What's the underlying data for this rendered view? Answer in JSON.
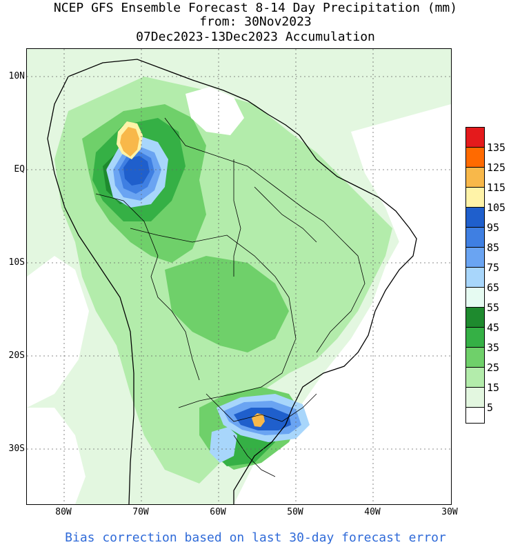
{
  "title": {
    "line1": "NCEP GFS Ensemble Forecast 8-14 Day Precipitation (mm)",
    "line2": "from: 30Nov2023",
    "line3": "07Dec2023-13Dec2023 Accumulation"
  },
  "axes": {
    "lat_labels": [
      "10N",
      "EQ",
      "10S",
      "20S",
      "30S"
    ],
    "lon_labels": [
      "80W",
      "70W",
      "60W",
      "50W",
      "40W",
      "30W"
    ]
  },
  "legend": {
    "labels": [
      "135",
      "125",
      "115",
      "105",
      "95",
      "85",
      "75",
      "65",
      "55",
      "45",
      "35",
      "25",
      "15",
      "5"
    ],
    "colors": [
      "#e41a1c",
      "#ff6a00",
      "#f8b84a",
      "#fff3a8",
      "#1f5fcc",
      "#3f7fe2",
      "#6aa4f2",
      "#a8d6fb",
      "#e6fbf2",
      "#1e8a2e",
      "#35b045",
      "#6fd06a",
      "#b3ecab",
      "#e3f7e0",
      "#ffffff"
    ]
  },
  "footer": {
    "note": "Bias correction based on last 30-day forecast error"
  }
}
